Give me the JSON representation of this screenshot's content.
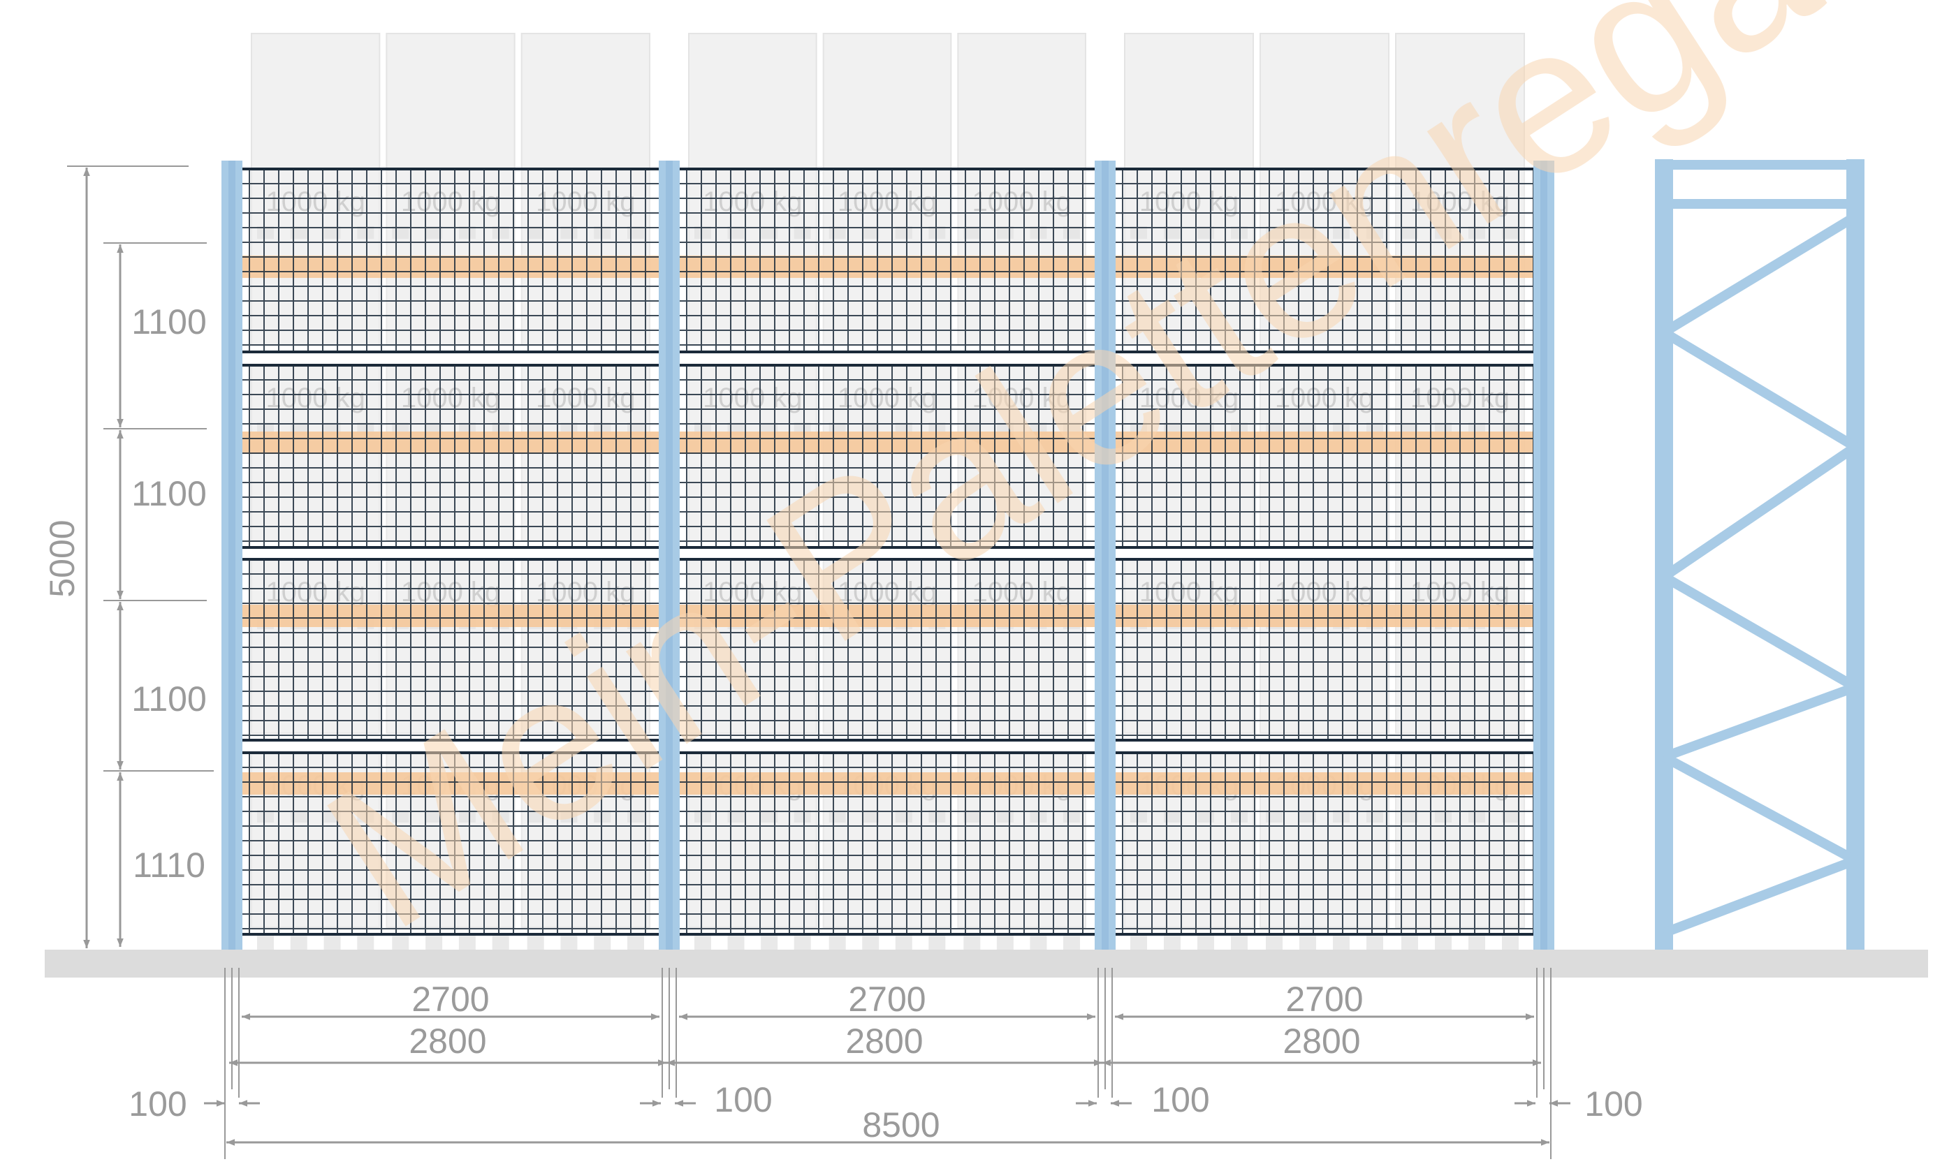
{
  "colors": {
    "upright": "#a8cbe6",
    "beam": "#f5c89a",
    "mesh": "#1b2a3a",
    "dimension": "#999999",
    "floor": "#dcdcdc",
    "pallet_box": "#f1f1f1",
    "watermark": "#f7d5b0"
  },
  "load_label": "1000 kg",
  "watermark_text": "Mein-Palettenregal.de",
  "vertical_dims": {
    "total": "5000",
    "levels": [
      "1100",
      "1100",
      "1100",
      "1110"
    ]
  },
  "horizontal_dims": {
    "clear_width": [
      "2700",
      "2700",
      "2700"
    ],
    "bay_pitch": [
      "2800",
      "2800",
      "2800"
    ],
    "gaps": [
      "100",
      "100",
      "100",
      "100"
    ],
    "total": "8500"
  }
}
